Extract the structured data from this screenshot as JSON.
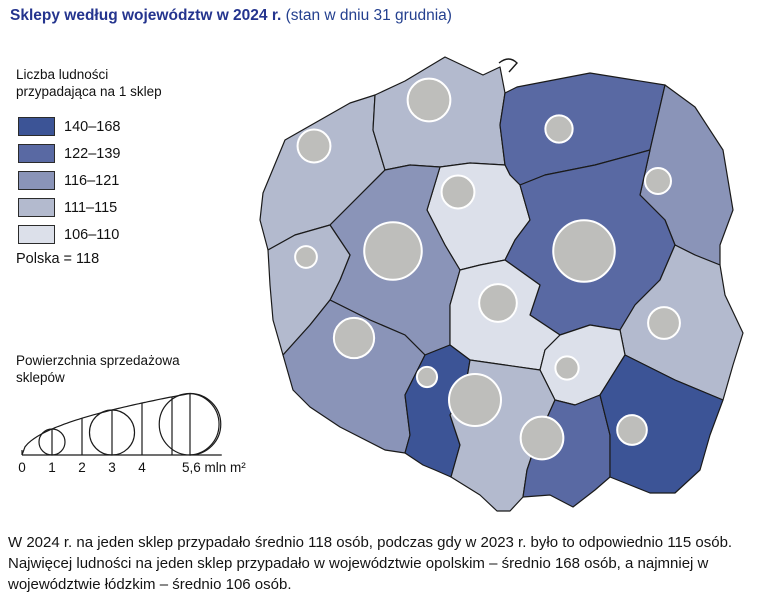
{
  "title": {
    "bold": "Sklepy według województw w 2024 r.",
    "normal": " (stan w dniu 31 grudnia)"
  },
  "legend_population": {
    "title_line1": "Liczba ludności",
    "title_line2": "przypadająca na 1 sklep",
    "classes": [
      {
        "label": "140–168",
        "color": "#3C5496"
      },
      {
        "label": "122–139",
        "color": "#5969A3"
      },
      {
        "label": "116–121",
        "color": "#8A94B8"
      },
      {
        "label": "111–115",
        "color": "#B3BACE"
      },
      {
        "label": "106–110",
        "color": "#DCE0EA"
      }
    ],
    "reference": "Polska = 118"
  },
  "legend_area": {
    "title_line1": "Powierzchnia sprzedażowa",
    "title_line2": "sklepów",
    "ticks": [
      {
        "v": 0,
        "label": "0"
      },
      {
        "v": 1,
        "label": "1"
      },
      {
        "v": 2,
        "label": "2"
      },
      {
        "v": 3,
        "label": "3"
      },
      {
        "v": 4,
        "label": "4"
      },
      {
        "v": 5,
        "label": ""
      },
      {
        "v": 5.6,
        "label": "5,6 mln m²"
      }
    ],
    "legend_circles": [
      1,
      3,
      5.6
    ]
  },
  "map": {
    "border_color": "#1a1a1a",
    "circle_fill": "#BEBEBB",
    "circle_stroke": "#ffffff"
  },
  "footer": {
    "text": "W 2024 r. na jeden sklep przypadało średnio 118 osób, podczas gdy w 2023 r. było to odpowiednio 115 osób. Najwięcej ludności na jeden sklep przypadało w województwie opolskim – średnio 168 osób, a najmniej w województwie łódzkim – średnio 106 osób."
  },
  "chart_data": {
    "type": "choropleth_proportional_symbol_map",
    "title": "Sklepy według województw w 2024 r. (stan w dniu 31 grudnia)",
    "choropleth_measure": "Liczba ludności przypadająca na 1 sklep",
    "symbol_measure": "Powierzchnia sprzedażowa sklepów (mln m²)",
    "poland_average_pop_per_shop": 118,
    "class_breaks": [
      "140–168",
      "122–139",
      "116–121",
      "111–115",
      "106–110"
    ],
    "symbol_scale_ticks_mln_m2": [
      0,
      1,
      2,
      3,
      4,
      5.6
    ],
    "regions": [
      {
        "id": "zachodniopomorskie",
        "class_index": 3,
        "pop_per_shop_class": "111–115",
        "sales_area_mln_m2": 1.6,
        "circle": [
          59,
          101
        ],
        "poly": "8,148 30,95 95,58 120,50 118,85 130,125 105,150 75,180 40,190 13,205 5,175"
      },
      {
        "id": "pomorskie",
        "class_index": 3,
        "pop_per_shop_class": "111–115",
        "sales_area_mln_m2": 2.7,
        "circle": [
          174,
          55
        ],
        "poly": "120,50 150,36 190,12 228,30 245,22 250,48 245,80 250,120 215,118 185,122 155,120 130,125 118,85"
      },
      {
        "id": "warminsko-mazurskie",
        "class_index": 1,
        "pop_per_shop_class": "122–139",
        "sales_area_mln_m2": 1.1,
        "circle": [
          304,
          84
        ],
        "poly": "250,48 262,42 335,28 410,40 395,105 340,120 290,130 265,140 255,130 250,120 245,80"
      },
      {
        "id": "podlaskie",
        "class_index": 2,
        "pop_per_shop_class": "116–121",
        "sales_area_mln_m2": 1.0,
        "circle": [
          403,
          136
        ],
        "poly": "410,40 440,62 468,105 478,165 465,200 465,220 440,210 420,200 410,175 385,150 395,105"
      },
      {
        "id": "kujawsko-pomorskie",
        "class_index": 4,
        "pop_per_shop_class": "106–110",
        "sales_area_mln_m2": 1.6,
        "circle": [
          203,
          147
        ],
        "poly": "250,120 255,130 265,140 275,175 260,195 250,215 225,220 205,225 190,200 172,165 185,122 215,118"
      },
      {
        "id": "mazowieckie",
        "class_index": 1,
        "pop_per_shop_class": "122–139",
        "sales_area_mln_m2": 5.6,
        "circle": [
          329,
          206
        ],
        "poly": "265,140 290,130 340,120 395,105 385,150 410,175 420,200 405,235 380,260 365,285 335,280 305,290 275,270 285,240 250,215 260,195 275,175"
      },
      {
        "id": "wielkopolskie",
        "class_index": 2,
        "pop_per_shop_class": "116–121",
        "sales_area_mln_m2": 4.9,
        "circle": [
          138,
          206
        ],
        "poly": "130,125 155,120 185,122 172,165 190,200 205,225 195,260 195,300 170,310 150,290 115,275 75,255 85,235 95,210 75,180 105,150"
      },
      {
        "id": "lubuskie",
        "class_index": 3,
        "pop_per_shop_class": "111–115",
        "sales_area_mln_m2": 0.7,
        "circle": [
          51,
          212
        ],
        "poly": "13,205 40,190 75,180 95,210 85,235 75,255 55,280 28,310 18,275 15,240"
      },
      {
        "id": "lodzkie",
        "class_index": 4,
        "pop_per_shop_class": "106–110",
        "sales_area_mln_m2": 2.1,
        "circle": [
          243,
          258
        ],
        "poly": "205,225 225,220 250,215 285,240 275,270 305,290 290,305 285,325 250,320 215,315 195,300 195,260"
      },
      {
        "id": "lubelskie",
        "class_index": 3,
        "pop_per_shop_class": "111–115",
        "sales_area_mln_m2": 1.5,
        "circle": [
          409,
          278
        ],
        "poly": "420,200 440,210 465,220 470,250 488,288 478,320 468,355 420,335 370,310 365,285 380,260 405,235"
      },
      {
        "id": "dolnoslaskie",
        "class_index": 2,
        "pop_per_shop_class": "116–121",
        "sales_area_mln_m2": 2.4,
        "circle": [
          99,
          293
        ],
        "poly": "75,255 115,275 150,290 170,310 150,350 155,390 150,408 130,405 85,382 55,362 38,345 28,310 55,280"
      },
      {
        "id": "opolskie",
        "class_index": 0,
        "pop_per_shop_class": "140–168",
        "sales_area_mln_m2": 0.6,
        "circle": [
          172,
          332
        ],
        "poly": "170,310 195,300 215,315 210,345 195,370 205,400 196,432 180,425 168,420 150,408 155,390 150,350"
      },
      {
        "id": "swietokrzyskie",
        "class_index": 4,
        "pop_per_shop_class": "106–110",
        "sales_area_mln_m2": 0.8,
        "circle": [
          312,
          323
        ],
        "poly": "305,290 335,280 365,285 370,310 345,350 320,360 300,355 285,325 290,305"
      },
      {
        "id": "slaskie",
        "class_index": 3,
        "pop_per_shop_class": "111–115",
        "sales_area_mln_m2": 4.0,
        "circle": [
          220,
          355
        ],
        "poly": "215,315 250,320 285,325 300,355 282,395 272,425 268,452 255,466 242,466 225,450 196,432 205,400 195,370 210,345"
      },
      {
        "id": "malopolskie",
        "class_index": 1,
        "pop_per_shop_class": "122–139",
        "sales_area_mln_m2": 2.7,
        "circle": [
          287,
          393
        ],
        "poly": "300,355 320,360 345,350 355,390 355,432 340,445 318,462 295,450 268,452 272,425 282,395"
      },
      {
        "id": "podkarpackie",
        "class_index": 0,
        "pop_per_shop_class": "140–168",
        "sales_area_mln_m2": 1.3,
        "circle": [
          377,
          385
        ],
        "poly": "370,310 420,335 468,355 455,390 445,425 420,448 395,448 370,438 355,432 355,390 345,350"
      }
    ]
  }
}
